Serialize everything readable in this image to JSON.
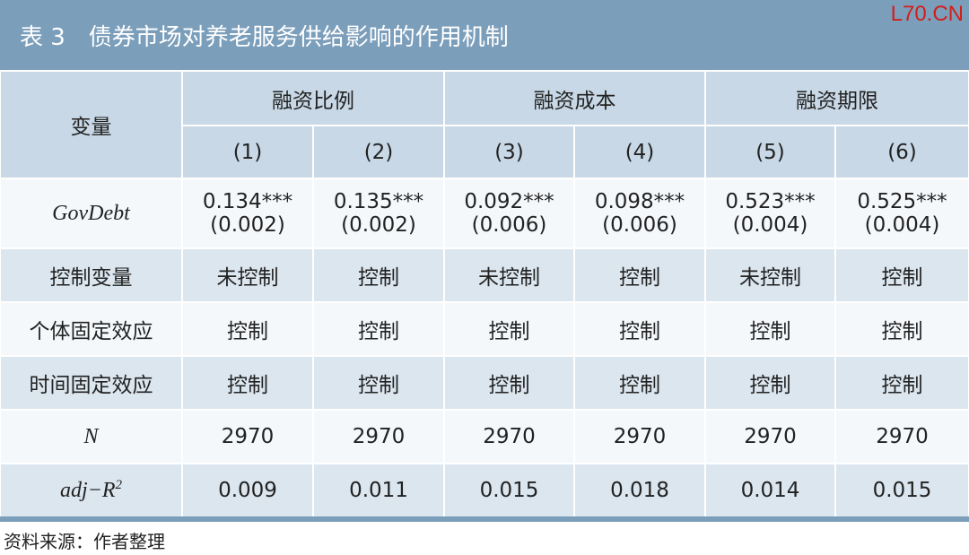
{
  "title": "表 3　债券市场对养老服务供给影响的作用机制",
  "watermark": "L70.CN",
  "header": {
    "variable": "变量",
    "groups": [
      "融资比例",
      "融资成本",
      "融资期限"
    ],
    "columns": [
      "(1)",
      "(2)",
      "(3)",
      "(4)",
      "(5)",
      "(6)"
    ]
  },
  "rows": [
    {
      "label": "GovDebt",
      "cells": [
        [
          "0.134***",
          "(0.002)"
        ],
        [
          "0.135***",
          "(0.002)"
        ],
        [
          "0.092***",
          "(0.006)"
        ],
        [
          "0.098***",
          "(0.006)"
        ],
        [
          "0.523***",
          "(0.004)"
        ],
        [
          "0.525***",
          "(0.004)"
        ]
      ]
    },
    {
      "label": "控制变量",
      "cells": [
        "未控制",
        "控制",
        "未控制",
        "控制",
        "未控制",
        "控制"
      ]
    },
    {
      "label": "个体固定效应",
      "cells": [
        "控制",
        "控制",
        "控制",
        "控制",
        "控制",
        "控制"
      ]
    },
    {
      "label": "时间固定效应",
      "cells": [
        "控制",
        "控制",
        "控制",
        "控制",
        "控制",
        "控制"
      ]
    },
    {
      "label": "N",
      "cells": [
        "2970",
        "2970",
        "2970",
        "2970",
        "2970",
        "2970"
      ]
    },
    {
      "label": "adj−R",
      "label_sup": "2",
      "cells": [
        "0.009",
        "0.011",
        "0.015",
        "0.018",
        "0.014",
        "0.015"
      ]
    }
  ],
  "source": "资料来源：作者整理"
}
